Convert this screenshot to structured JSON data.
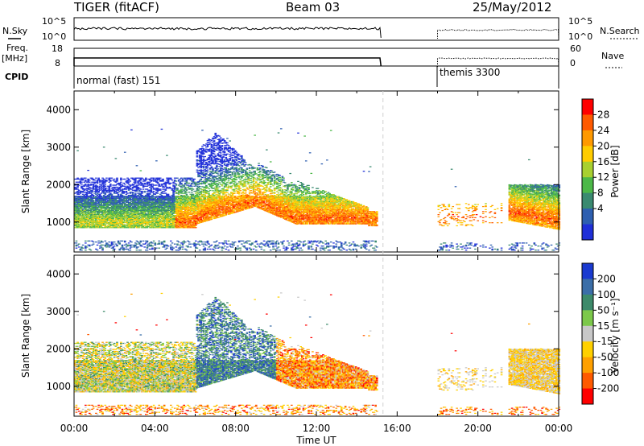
{
  "header": {
    "radar": "TIGER (fitACF)",
    "beam": "Beam 03",
    "date": "25/May/2012"
  },
  "summary": {
    "nsky_label": "N.Sky",
    "nsky_ticks": [
      "10^5",
      "10^0"
    ],
    "nsearch_label": "N.Search",
    "nsearch_ticks": [
      "10^5",
      "10^0"
    ],
    "freq_label": [
      "Freq.",
      "[MHz]"
    ],
    "freq_ticks": [
      "18",
      "8"
    ],
    "nave_label": "Nave",
    "nave_ticks": [
      "60",
      "0"
    ],
    "cpid_label": "CPID",
    "cpid_segments": [
      {
        "name": "normal (fast) 151",
        "start": 0,
        "end": 15.2
      },
      {
        "name": "themis 3300",
        "start": 18.0,
        "end": 24
      }
    ]
  },
  "chart_data": [
    {
      "type": "heatmap",
      "panel": "power",
      "ylabel": "Slant Range [km]",
      "xlabel": "",
      "ylim": [
        200,
        4500
      ],
      "yticks": [
        "1000",
        "2000",
        "3000",
        "4000"
      ],
      "xlim": [
        0,
        24
      ],
      "colorbar_label": "Power [dB]",
      "colorbar_ticks": [
        "28",
        "24",
        "20",
        "16",
        "12",
        "8",
        "4"
      ],
      "colorbar_colors": [
        "#ff0000",
        "#ff5a00",
        "#ff9900",
        "#ffcc00",
        "#a8d030",
        "#4cb848",
        "#3a8a70",
        "#2e5fb0",
        "#1f2fd8"
      ],
      "features": [
        {
          "band_km": [
            800,
            1700
          ],
          "hours": [
            0,
            15
          ],
          "peak_db": 28
        },
        {
          "band_km": [
            800,
            1800
          ],
          "hours": [
            18,
            24
          ],
          "peak_db": 28
        }
      ]
    },
    {
      "type": "heatmap",
      "panel": "velocity",
      "ylabel": "Slant Range [km]",
      "xlabel": "Time UT",
      "ylim": [
        200,
        4500
      ],
      "yticks": [
        "1000",
        "2000",
        "3000",
        "4000"
      ],
      "xlim": [
        0,
        24
      ],
      "xticks": [
        "00:00",
        "04:00",
        "08:00",
        "12:00",
        "16:00",
        "20:00",
        "00:00"
      ],
      "colorbar_label": "Velocity [m s⁻¹]",
      "colorbar_ticks": [
        "200",
        "100",
        "50",
        "15",
        "-15",
        "-50",
        "-100",
        "-200"
      ],
      "colorbar_colors": [
        "#1a3ad0",
        "#3b6ea8",
        "#3d8a6a",
        "#7cc84a",
        "#c8c8c8",
        "#ffd000",
        "#ffa000",
        "#ff5a00",
        "#ff0000"
      ]
    }
  ]
}
